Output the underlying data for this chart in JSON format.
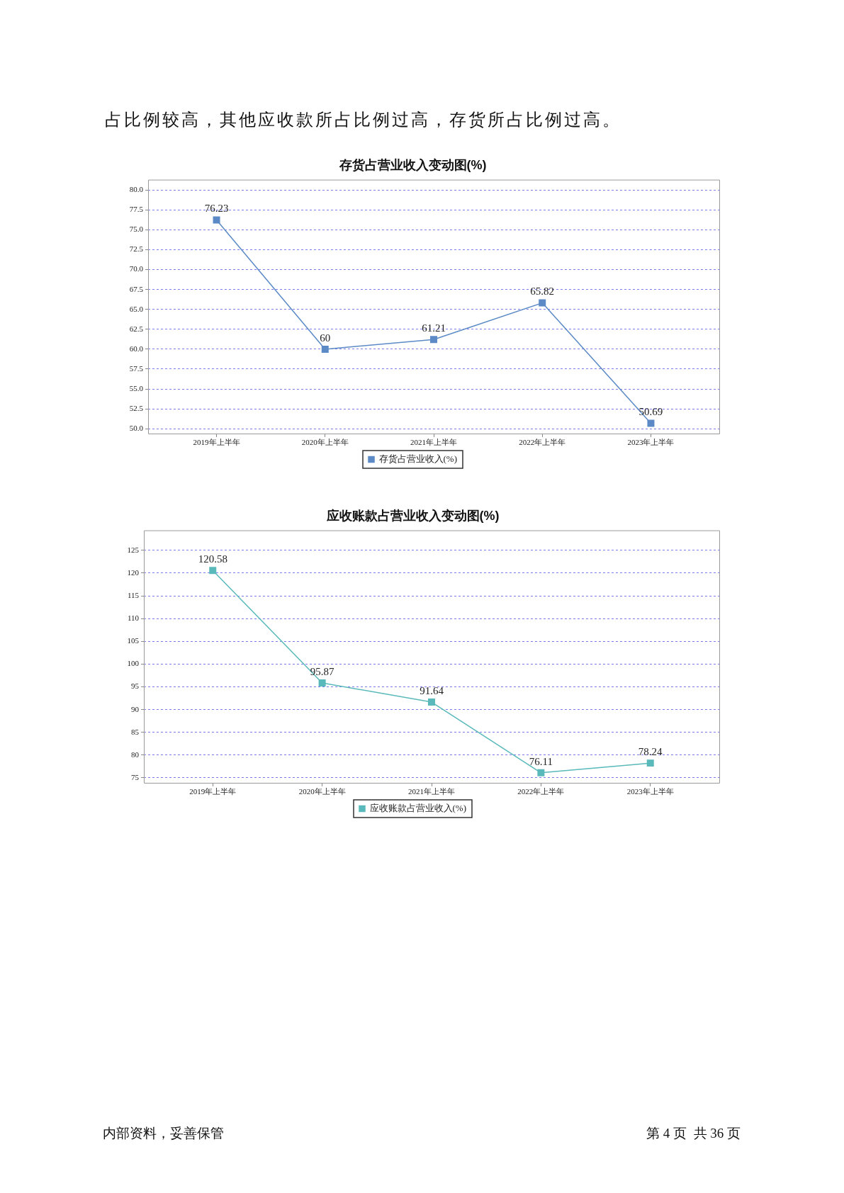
{
  "chart_data": [
    {
      "type": "line",
      "title": "存货占营业收入变动图(%)",
      "categories": [
        "2019年上半年",
        "2020年上半年",
        "2021年上半年",
        "2022年上半年",
        "2023年上半年"
      ],
      "series": [
        {
          "name": "存货占营业收入(%)",
          "color": "#5b8ac6",
          "values": [
            76.23,
            60,
            61.21,
            65.82,
            50.69
          ]
        }
      ],
      "ylim": [
        49.4,
        81.3
      ],
      "yticks": [
        {
          "value": 50,
          "label": "50.0"
        },
        52.5,
        {
          "value": 55,
          "label": "55.0"
        },
        57.5,
        {
          "value": 60,
          "label": "60.0"
        },
        62.5,
        {
          "value": 65,
          "label": "65.0"
        },
        67.5,
        {
          "value": 70,
          "label": "70.0"
        },
        72.5,
        {
          "value": 75,
          "label": "75.0"
        },
        77.5,
        {
          "value": 80,
          "label": "80.0"
        }
      ],
      "grid": "y",
      "legend": "bottom",
      "marker": "square",
      "line_style": "solid",
      "data_labels": true,
      "annotations": [
        "占比例较高，其他应收款所占比例过高，存货所占比例过高。"
      ]
    },
    {
      "type": "line",
      "title": "应收账款占营业收入变动图(%)",
      "categories": [
        "2019年上半年",
        "2020年上半年",
        "2021年上半年",
        "2022年上半年",
        "2023年上半年"
      ],
      "series": [
        {
          "name": "应收账款占营业收入(%)",
          "color": "#5ab9ba",
          "values": [
            120.58,
            95.87,
            91.64,
            76.11,
            78.24
          ]
        }
      ],
      "ylim": [
        73.9,
        129.4
      ],
      "yticks": [
        75,
        80,
        85,
        90,
        95,
        100,
        105,
        110,
        115,
        120,
        125
      ],
      "grid": "y",
      "legend": "bottom",
      "marker": "square",
      "line_style": "solid",
      "data_labels": true,
      "annotations": [
        "内部资料，妥善保管",
        "第 4 页  共 36 页"
      ]
    }
  ]
}
